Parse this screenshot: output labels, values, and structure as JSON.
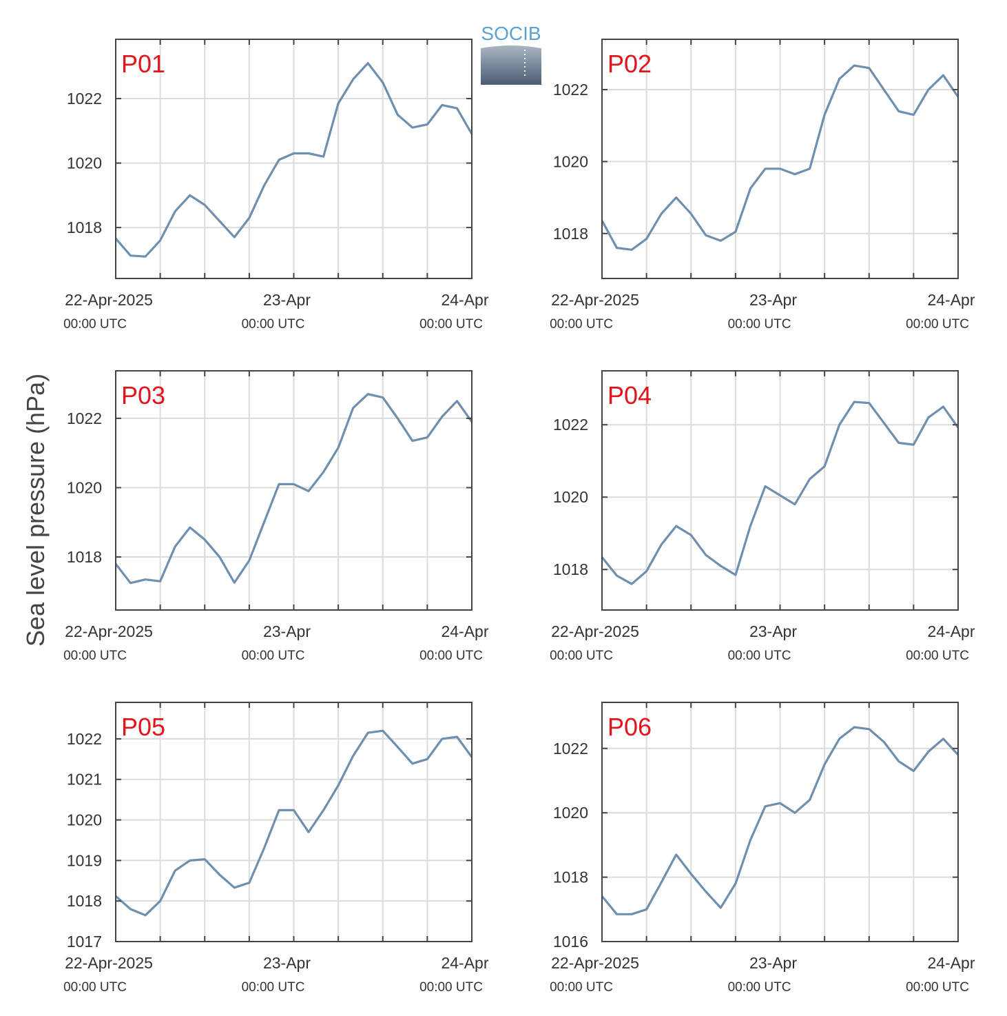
{
  "ylabel": "Sea level pressure (hPa)",
  "logo": "SOCIB",
  "chart_data": [
    {
      "type": "line",
      "title": "P01",
      "color": "#6f8fae",
      "x": [
        "2025-04-22 00:00",
        "2025-04-22 02:00",
        "2025-04-22 04:00",
        "2025-04-22 06:00",
        "2025-04-22 08:00",
        "2025-04-22 10:00",
        "2025-04-22 12:00",
        "2025-04-22 14:00",
        "2025-04-22 16:00",
        "2025-04-22 18:00",
        "2025-04-22 20:00",
        "2025-04-22 22:00",
        "2025-04-23 00:00",
        "2025-04-23 02:00",
        "2025-04-23 04:00",
        "2025-04-23 06:00",
        "2025-04-23 08:00",
        "2025-04-23 10:00",
        "2025-04-23 12:00",
        "2025-04-23 14:00",
        "2025-04-23 16:00",
        "2025-04-23 18:00",
        "2025-04-23 20:00",
        "2025-04-23 22:00",
        "2025-04-24 00:00"
      ],
      "values": [
        1017.66,
        1017.13,
        1017.1,
        1017.6,
        1018.5,
        1019.0,
        1018.7,
        1018.2,
        1017.7,
        1018.3,
        1019.3,
        1020.1,
        1020.3,
        1020.3,
        1020.2,
        1021.85,
        1022.6,
        1023.1,
        1022.5,
        1021.5,
        1021.1,
        1021.2,
        1021.8,
        1021.7,
        1020.9
      ],
      "xlim": [
        "2025-04-22 00:00",
        "2025-04-24 00:00"
      ],
      "xticks": [
        {
          "value": "2025-04-22 00:00",
          "label": "22-Apr-2025",
          "sublabel": "00:00 UTC"
        },
        {
          "value": "2025-04-23 00:00",
          "label": "23-Apr",
          "sublabel": "00:00 UTC"
        },
        {
          "value": "2025-04-24 00:00",
          "label": "24-Apr",
          "sublabel": "00:00 UTC"
        }
      ],
      "xminorticks": [
        "2025-04-22 06:00",
        "2025-04-22 12:00",
        "2025-04-22 18:00",
        "2025-04-23 06:00",
        "2025-04-23 12:00",
        "2025-04-23 18:00"
      ],
      "ylim": [
        1016.42,
        1023.84
      ],
      "yticks": [
        1018,
        1020,
        1022
      ],
      "grid": true
    },
    {
      "type": "line",
      "title": "P02",
      "color": "#6f8fae",
      "x": [
        "2025-04-22 00:00",
        "2025-04-22 02:00",
        "2025-04-22 04:00",
        "2025-04-22 06:00",
        "2025-04-22 08:00",
        "2025-04-22 10:00",
        "2025-04-22 12:00",
        "2025-04-22 14:00",
        "2025-04-22 16:00",
        "2025-04-22 18:00",
        "2025-04-22 20:00",
        "2025-04-22 22:00",
        "2025-04-23 00:00",
        "2025-04-23 02:00",
        "2025-04-23 04:00",
        "2025-04-23 06:00",
        "2025-04-23 08:00",
        "2025-04-23 10:00",
        "2025-04-23 12:00",
        "2025-04-23 14:00",
        "2025-04-23 16:00",
        "2025-04-23 18:00",
        "2025-04-23 20:00",
        "2025-04-23 22:00",
        "2025-04-24 00:00"
      ],
      "values": [
        1018.36,
        1017.6,
        1017.55,
        1017.85,
        1018.55,
        1019.0,
        1018.55,
        1017.95,
        1017.8,
        1018.05,
        1019.25,
        1019.8,
        1019.8,
        1019.65,
        1019.8,
        1021.3,
        1022.3,
        1022.67,
        1022.6,
        1022.0,
        1021.4,
        1021.3,
        1022.0,
        1022.4,
        1021.8
      ],
      "xlim": [
        "2025-04-22 00:00",
        "2025-04-24 00:00"
      ],
      "xticks": [
        {
          "value": "2025-04-22 00:00",
          "label": "22-Apr-2025",
          "sublabel": "00:00 UTC"
        },
        {
          "value": "2025-04-23 00:00",
          "label": "23-Apr",
          "sublabel": "00:00 UTC"
        },
        {
          "value": "2025-04-24 00:00",
          "label": "24-Apr",
          "sublabel": "00:00 UTC"
        }
      ],
      "xminorticks": [
        "2025-04-22 06:00",
        "2025-04-22 12:00",
        "2025-04-22 18:00",
        "2025-04-23 06:00",
        "2025-04-23 12:00",
        "2025-04-23 18:00"
      ],
      "ylim": [
        1016.75,
        1023.4
      ],
      "yticks": [
        1018,
        1020,
        1022
      ],
      "grid": true
    },
    {
      "type": "line",
      "title": "P03",
      "color": "#6f8fae",
      "x": [
        "2025-04-22 00:00",
        "2025-04-22 02:00",
        "2025-04-22 04:00",
        "2025-04-22 06:00",
        "2025-04-22 08:00",
        "2025-04-22 10:00",
        "2025-04-22 12:00",
        "2025-04-22 14:00",
        "2025-04-22 16:00",
        "2025-04-22 18:00",
        "2025-04-22 20:00",
        "2025-04-22 22:00",
        "2025-04-23 00:00",
        "2025-04-23 02:00",
        "2025-04-23 04:00",
        "2025-04-23 06:00",
        "2025-04-23 08:00",
        "2025-04-23 10:00",
        "2025-04-23 12:00",
        "2025-04-23 14:00",
        "2025-04-23 16:00",
        "2025-04-23 18:00",
        "2025-04-23 20:00",
        "2025-04-23 22:00",
        "2025-04-24 00:00"
      ],
      "values": [
        1017.8,
        1017.25,
        1017.35,
        1017.3,
        1018.3,
        1018.85,
        1018.5,
        1018.0,
        1017.26,
        1017.9,
        1019.0,
        1020.1,
        1020.1,
        1019.9,
        1020.45,
        1021.15,
        1022.3,
        1022.7,
        1022.6,
        1022.0,
        1021.35,
        1021.45,
        1022.05,
        1022.5,
        1021.9
      ],
      "xlim": [
        "2025-04-22 00:00",
        "2025-04-24 00:00"
      ],
      "xticks": [
        {
          "value": "2025-04-22 00:00",
          "label": "22-Apr-2025",
          "sublabel": "00:00 UTC"
        },
        {
          "value": "2025-04-23 00:00",
          "label": "23-Apr",
          "sublabel": "00:00 UTC"
        },
        {
          "value": "2025-04-24 00:00",
          "label": "24-Apr",
          "sublabel": "00:00 UTC"
        }
      ],
      "xminorticks": [
        "2025-04-22 06:00",
        "2025-04-22 12:00",
        "2025-04-22 18:00",
        "2025-04-23 06:00",
        "2025-04-23 12:00",
        "2025-04-23 18:00"
      ],
      "ylim": [
        1016.47,
        1023.37
      ],
      "yticks": [
        1018,
        1020,
        1022
      ],
      "grid": true
    },
    {
      "type": "line",
      "title": "P04",
      "color": "#6f8fae",
      "x": [
        "2025-04-22 00:00",
        "2025-04-22 02:00",
        "2025-04-22 04:00",
        "2025-04-22 06:00",
        "2025-04-22 08:00",
        "2025-04-22 10:00",
        "2025-04-22 12:00",
        "2025-04-22 14:00",
        "2025-04-22 16:00",
        "2025-04-22 18:00",
        "2025-04-22 20:00",
        "2025-04-22 22:00",
        "2025-04-23 00:00",
        "2025-04-23 02:00",
        "2025-04-23 04:00",
        "2025-04-23 06:00",
        "2025-04-23 08:00",
        "2025-04-23 10:00",
        "2025-04-23 12:00",
        "2025-04-23 14:00",
        "2025-04-23 16:00",
        "2025-04-23 18:00",
        "2025-04-23 20:00",
        "2025-04-23 22:00",
        "2025-04-24 00:00"
      ],
      "values": [
        1018.34,
        1017.83,
        1017.6,
        1017.95,
        1018.69,
        1019.2,
        1018.95,
        1018.4,
        1018.1,
        1017.85,
        1019.2,
        1020.3,
        1020.05,
        1019.8,
        1020.5,
        1020.85,
        1022.0,
        1022.63,
        1022.6,
        1022.05,
        1021.5,
        1021.45,
        1022.2,
        1022.5,
        1021.92
      ],
      "xlim": [
        "2025-04-22 00:00",
        "2025-04-24 00:00"
      ],
      "xticks": [
        {
          "value": "2025-04-22 00:00",
          "label": "22-Apr-2025",
          "sublabel": "00:00 UTC"
        },
        {
          "value": "2025-04-23 00:00",
          "label": "23-Apr",
          "sublabel": "00:00 UTC"
        },
        {
          "value": "2025-04-24 00:00",
          "label": "24-Apr",
          "sublabel": "00:00 UTC"
        }
      ],
      "xminorticks": [
        "2025-04-22 06:00",
        "2025-04-22 12:00",
        "2025-04-22 18:00",
        "2025-04-23 06:00",
        "2025-04-23 12:00",
        "2025-04-23 18:00"
      ],
      "ylim": [
        1016.88,
        1023.49
      ],
      "yticks": [
        1018,
        1020,
        1022
      ],
      "grid": true
    },
    {
      "type": "line",
      "title": "P05",
      "color": "#6f8fae",
      "x": [
        "2025-04-22 00:00",
        "2025-04-22 02:00",
        "2025-04-22 04:00",
        "2025-04-22 06:00",
        "2025-04-22 08:00",
        "2025-04-22 10:00",
        "2025-04-22 12:00",
        "2025-04-22 14:00",
        "2025-04-22 16:00",
        "2025-04-22 18:00",
        "2025-04-22 20:00",
        "2025-04-22 22:00",
        "2025-04-23 00:00",
        "2025-04-23 02:00",
        "2025-04-23 04:00",
        "2025-04-23 06:00",
        "2025-04-23 08:00",
        "2025-04-23 10:00",
        "2025-04-23 12:00",
        "2025-04-23 14:00",
        "2025-04-23 16:00",
        "2025-04-23 18:00",
        "2025-04-23 20:00",
        "2025-04-23 22:00",
        "2025-04-24 00:00"
      ],
      "values": [
        1018.12,
        1017.8,
        1017.65,
        1018.0,
        1018.75,
        1019.0,
        1019.03,
        1018.65,
        1018.33,
        1018.45,
        1019.3,
        1020.24,
        1020.24,
        1019.7,
        1020.24,
        1020.85,
        1021.58,
        1022.15,
        1022.2,
        1021.8,
        1021.39,
        1021.5,
        1022.0,
        1022.05,
        1021.55
      ],
      "xlim": [
        "2025-04-22 00:00",
        "2025-04-24 00:00"
      ],
      "xticks": [
        {
          "value": "2025-04-22 00:00",
          "label": "22-Apr-2025",
          "sublabel": "00:00 UTC"
        },
        {
          "value": "2025-04-23 00:00",
          "label": "23-Apr",
          "sublabel": "00:00 UTC"
        },
        {
          "value": "2025-04-24 00:00",
          "label": "24-Apr",
          "sublabel": "00:00 UTC"
        }
      ],
      "xminorticks": [
        "2025-04-22 06:00",
        "2025-04-22 12:00",
        "2025-04-22 18:00",
        "2025-04-23 06:00",
        "2025-04-23 12:00",
        "2025-04-23 18:00"
      ],
      "ylim": [
        1017,
        1022.9
      ],
      "yticks": [
        1017,
        1018,
        1019,
        1020,
        1021,
        1022
      ],
      "grid": true
    },
    {
      "type": "line",
      "title": "P06",
      "color": "#6f8fae",
      "x": [
        "2025-04-22 00:00",
        "2025-04-22 02:00",
        "2025-04-22 04:00",
        "2025-04-22 06:00",
        "2025-04-22 08:00",
        "2025-04-22 10:00",
        "2025-04-22 12:00",
        "2025-04-22 14:00",
        "2025-04-22 16:00",
        "2025-04-22 18:00",
        "2025-04-22 20:00",
        "2025-04-22 22:00",
        "2025-04-23 00:00",
        "2025-04-23 02:00",
        "2025-04-23 04:00",
        "2025-04-23 06:00",
        "2025-04-23 08:00",
        "2025-04-23 10:00",
        "2025-04-23 12:00",
        "2025-04-23 14:00",
        "2025-04-23 16:00",
        "2025-04-23 18:00",
        "2025-04-23 20:00",
        "2025-04-23 22:00",
        "2025-04-24 00:00"
      ],
      "values": [
        1017.41,
        1016.85,
        1016.85,
        1017.0,
        1017.84,
        1018.7,
        1018.1,
        1017.55,
        1017.05,
        1017.8,
        1019.15,
        1020.2,
        1020.3,
        1020.0,
        1020.4,
        1021.5,
        1022.3,
        1022.66,
        1022.6,
        1022.2,
        1021.6,
        1021.3,
        1021.9,
        1022.3,
        1021.8
      ],
      "xlim": [
        "2025-04-22 00:00",
        "2025-04-24 00:00"
      ],
      "xticks": [
        {
          "value": "2025-04-22 00:00",
          "label": "22-Apr-2025",
          "sublabel": "00:00 UTC"
        },
        {
          "value": "2025-04-23 00:00",
          "label": "23-Apr",
          "sublabel": "00:00 UTC"
        },
        {
          "value": "2025-04-24 00:00",
          "label": "24-Apr",
          "sublabel": "00:00 UTC"
        }
      ],
      "xminorticks": [
        "2025-04-22 06:00",
        "2025-04-22 12:00",
        "2025-04-22 18:00",
        "2025-04-23 06:00",
        "2025-04-23 12:00",
        "2025-04-23 18:00"
      ],
      "ylim": [
        1016,
        1023.43
      ],
      "yticks": [
        1016,
        1018,
        1020,
        1022
      ],
      "grid": true
    }
  ]
}
